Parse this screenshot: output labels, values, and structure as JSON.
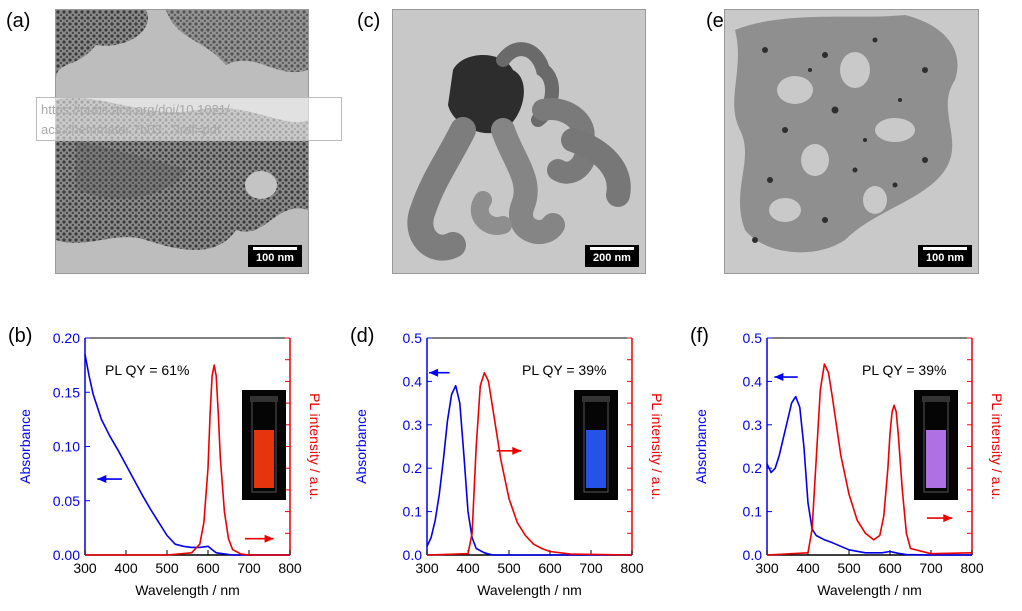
{
  "watermark": {
    "line1": "https://pubs.acs.org/doi/10.1021/",
    "line2": "acs.chemmater.7b03...?ref=pdf"
  },
  "tem_panels": [
    {
      "label": "(a)",
      "scale_text": "100 nm"
    },
    {
      "label": "(c)",
      "scale_text": "200 nm"
    },
    {
      "label": "(e)",
      "scale_text": "100 nm"
    }
  ],
  "chart_data": [
    {
      "type": "line",
      "label": "(b)",
      "annotation": "PL QY = 61%",
      "xlabel": "Wavelength / nm",
      "ylabel_left": "Absorbance",
      "ylabel_right": "PL intensity / a.u.",
      "xlim": [
        300,
        800
      ],
      "ylim": [
        0,
        0.2
      ],
      "xticks": [
        "300",
        "400",
        "500",
        "600",
        "700",
        "800"
      ],
      "yticks": [
        "0.00",
        "0.05",
        "0.10",
        "0.15",
        "0.20"
      ],
      "left_color": "#0000ee",
      "right_color": "#ee0000",
      "vial_color": "#ff3a10",
      "series": [
        {
          "axis": "left",
          "x": [
            300,
            310,
            320,
            340,
            360,
            380,
            400,
            420,
            440,
            460,
            480,
            500,
            520,
            540,
            560,
            580,
            600,
            610,
            620,
            640,
            660,
            700,
            800
          ],
          "y": [
            0.185,
            0.165,
            0.148,
            0.125,
            0.11,
            0.097,
            0.083,
            0.069,
            0.055,
            0.042,
            0.03,
            0.018,
            0.01,
            0.008,
            0.007,
            0.007,
            0.008,
            0.005,
            0.002,
            0.001,
            0.0,
            0.0,
            0.0
          ]
        },
        {
          "axis": "right",
          "x": [
            300,
            500,
            560,
            580,
            590,
            600,
            605,
            610,
            615,
            620,
            625,
            630,
            640,
            650,
            660,
            680,
            700,
            800
          ],
          "y": [
            0,
            0,
            0.002,
            0.01,
            0.03,
            0.08,
            0.13,
            0.165,
            0.175,
            0.165,
            0.13,
            0.09,
            0.04,
            0.015,
            0.005,
            0.001,
            0,
            0
          ]
        }
      ],
      "arrows": [
        {
          "direction": "left",
          "x_from": 390,
          "x_to": 330,
          "y": 0.07,
          "color": "#0000ee"
        },
        {
          "direction": "right",
          "x_from": 690,
          "x_to": 760,
          "y": 0.015,
          "color": "#ee0000"
        }
      ]
    },
    {
      "type": "line",
      "label": "(d)",
      "annotation": "PL QY = 39%",
      "xlabel": "Wavelength / nm",
      "ylabel_left": "Absorbance",
      "ylabel_right": "PL intensity / a.u.",
      "xlim": [
        300,
        800
      ],
      "ylim": [
        0,
        0.5
      ],
      "xticks": [
        "300",
        "400",
        "500",
        "600",
        "700",
        "800"
      ],
      "yticks": [
        "0.0",
        "0.1",
        "0.2",
        "0.3",
        "0.4",
        "0.5"
      ],
      "left_color": "#0000ee",
      "right_color": "#ee0000",
      "vial_color": "#2a5cff",
      "series": [
        {
          "axis": "left",
          "x": [
            300,
            310,
            320,
            330,
            340,
            350,
            360,
            370,
            380,
            390,
            400,
            410,
            420,
            440,
            460,
            500,
            600,
            800
          ],
          "y": [
            0.02,
            0.04,
            0.08,
            0.14,
            0.22,
            0.31,
            0.37,
            0.39,
            0.35,
            0.23,
            0.1,
            0.04,
            0.015,
            0.005,
            0.0,
            0.0,
            0.0,
            0.0
          ]
        },
        {
          "axis": "right",
          "x": [
            300,
            400,
            410,
            420,
            430,
            440,
            450,
            460,
            480,
            500,
            520,
            540,
            560,
            580,
            600,
            650,
            800
          ],
          "y": [
            0,
            0.003,
            0.05,
            0.25,
            0.39,
            0.42,
            0.4,
            0.34,
            0.22,
            0.13,
            0.075,
            0.045,
            0.025,
            0.015,
            0.008,
            0.002,
            0
          ]
        }
      ],
      "arrows": [
        {
          "direction": "left",
          "x_from": 355,
          "x_to": 305,
          "y": 0.42,
          "color": "#0000ee"
        },
        {
          "direction": "right",
          "x_from": 470,
          "x_to": 530,
          "y": 0.24,
          "color": "#ee0000"
        }
      ]
    },
    {
      "type": "line",
      "label": "(f)",
      "annotation": "PL QY = 39%",
      "xlabel": "Wavelength / nm",
      "ylabel_left": "Absorbance",
      "ylabel_right": "PL intensity / a.u.",
      "xlim": [
        300,
        800
      ],
      "ylim": [
        0,
        0.5
      ],
      "xticks": [
        "300",
        "400",
        "500",
        "600",
        "700",
        "800"
      ],
      "yticks": [
        "0.0",
        "0.1",
        "0.2",
        "0.3",
        "0.4",
        "0.5"
      ],
      "left_color": "#0000ee",
      "right_color": "#ee0000",
      "vial_color": "#c27cff",
      "series": [
        {
          "axis": "left",
          "x": [
            300,
            310,
            320,
            330,
            340,
            350,
            360,
            370,
            380,
            390,
            400,
            410,
            420,
            440,
            460,
            480,
            500,
            540,
            580,
            600,
            620,
            640,
            700,
            800
          ],
          "y": [
            0.21,
            0.19,
            0.2,
            0.23,
            0.27,
            0.31,
            0.35,
            0.365,
            0.34,
            0.25,
            0.12,
            0.06,
            0.045,
            0.035,
            0.028,
            0.02,
            0.012,
            0.005,
            0.005,
            0.008,
            0.004,
            0.001,
            0.0,
            0.0
          ]
        },
        {
          "axis": "right",
          "x": [
            300,
            400,
            410,
            420,
            430,
            440,
            450,
            460,
            480,
            500,
            520,
            540,
            560,
            575,
            585,
            595,
            600,
            605,
            610,
            615,
            620,
            630,
            640,
            650,
            700,
            800
          ],
          "y": [
            0,
            0.005,
            0.06,
            0.22,
            0.38,
            0.44,
            0.42,
            0.36,
            0.23,
            0.14,
            0.08,
            0.05,
            0.035,
            0.045,
            0.09,
            0.2,
            0.28,
            0.33,
            0.345,
            0.33,
            0.28,
            0.15,
            0.05,
            0.015,
            0.003,
            0.005
          ]
        }
      ],
      "arrows": [
        {
          "direction": "left",
          "x_from": 375,
          "x_to": 318,
          "y": 0.41,
          "color": "#0000ee"
        },
        {
          "direction": "right",
          "x_from": 690,
          "x_to": 752,
          "y": 0.085,
          "color": "#ee0000"
        }
      ]
    }
  ]
}
